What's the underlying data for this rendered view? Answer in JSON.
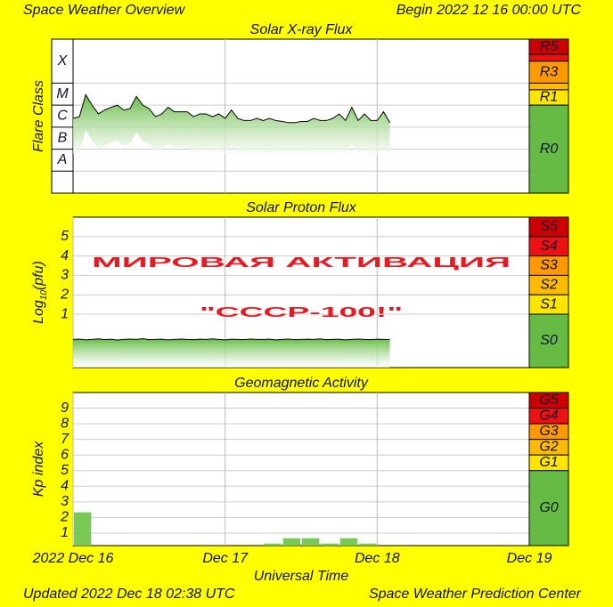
{
  "header": {
    "title": "Space Weather Overview",
    "begin": "Begin 2022 12 16 00:00 UTC"
  },
  "footer": {
    "updated": "Updated 2022 Dec 18 02:38 UTC",
    "source": "Space Weather Prediction Center"
  },
  "overlay": {
    "line1": "МИРОВАЯ АКТИВАЦИЯ",
    "line2": "\"СССР-100!\""
  },
  "time_axis": {
    "xlim": [
      0,
      72
    ],
    "xticks": [
      {
        "value": 0,
        "label": "2022 Dec 16"
      },
      {
        "value": 24,
        "label": "Dec 17"
      },
      {
        "value": 48,
        "label": "Dec 18"
      },
      {
        "value": 72,
        "label": "Dec 19"
      }
    ],
    "xlabel": "Universal Time"
  },
  "chart_data": [
    {
      "type": "line",
      "title": "Solar X-ray Flux",
      "ylabel": "Flare Class",
      "log_scale": true,
      "ylim": [
        1e-09,
        0.01
      ],
      "yticks": [
        {
          "value": 3.16e-08,
          "label": "A"
        },
        {
          "value": 3.16e-07,
          "label": "B"
        },
        {
          "value": 3.16e-06,
          "label": "C"
        },
        {
          "value": 3.16e-05,
          "label": "M"
        },
        {
          "value": 0.001,
          "label": "X"
        }
      ],
      "ygrid": [
        1e-08,
        1e-07,
        1e-06,
        1e-05,
        0.0001
      ],
      "color": "#000000",
      "fill_color": "#66bb44",
      "x": [
        0,
        1,
        2,
        3,
        4,
        5,
        6,
        7,
        8,
        9,
        10,
        11,
        12,
        13,
        14,
        15,
        16,
        17,
        18,
        19,
        20,
        21,
        22,
        23,
        24,
        25,
        26,
        27,
        28,
        29,
        30,
        31,
        32,
        33,
        34,
        35,
        36,
        37,
        38,
        39,
        40,
        41,
        42,
        43,
        44,
        45,
        46,
        47,
        48,
        49,
        50
      ],
      "values": [
        2.5e-06,
        3e-06,
        3e-05,
        1e-05,
        4e-06,
        6e-06,
        8e-06,
        1e-05,
        6e-06,
        7e-06,
        2.5e-05,
        1e-05,
        7e-06,
        3e-06,
        4e-06,
        8e-06,
        5e-06,
        5e-06,
        5e-06,
        3e-06,
        4e-06,
        4e-06,
        3e-06,
        4e-06,
        2.5e-06,
        6e-06,
        2.5e-06,
        2e-06,
        2e-06,
        2.5e-06,
        2e-06,
        2.5e-06,
        2e-06,
        1.8e-06,
        1.6e-06,
        1.6e-06,
        1.8e-06,
        1.8e-06,
        2.5e-06,
        2e-06,
        2e-06,
        2.5e-06,
        4e-06,
        2e-06,
        8e-06,
        2e-06,
        4e-06,
        2e-06,
        2e-06,
        5e-06,
        1.6e-06
      ],
      "scale": [
        {
          "label": "R5",
          "from": 0.002,
          "to": 0.01,
          "color": "#cc0000"
        },
        {
          "from": 0.001,
          "to": 0.002,
          "color": "#e81010"
        },
        {
          "label": "R3",
          "from": 0.0001,
          "to": 0.001,
          "color": "#ff9900"
        },
        {
          "from": 5e-05,
          "to": 0.0001,
          "color": "#ffbb00"
        },
        {
          "label": "R1",
          "from": 1e-05,
          "to": 5e-05,
          "color": "#ffe600"
        },
        {
          "label": "R0",
          "from": 1e-09,
          "to": 1e-05,
          "color": "#66bb44"
        }
      ]
    },
    {
      "type": "line",
      "title": "Solar Proton Flux",
      "ylabel": [
        "Log",
        "10",
        "(pfu)"
      ],
      "ylim": [
        -1.75,
        6
      ],
      "yticks": [
        1,
        2,
        3,
        4,
        5
      ],
      "grid": true,
      "color": "#000000",
      "fill_color": "#66bb44",
      "x": [
        0,
        1,
        2,
        3,
        4,
        5,
        6,
        7,
        8,
        9,
        10,
        11,
        12,
        13,
        14,
        15,
        16,
        17,
        18,
        19,
        20,
        21,
        22,
        23,
        24,
        25,
        26,
        27,
        28,
        29,
        30,
        31,
        32,
        33,
        34,
        35,
        36,
        37,
        38,
        39,
        40,
        41,
        42,
        43,
        44,
        45,
        46,
        47,
        48,
        49,
        50
      ],
      "values": [
        -0.3,
        -0.28,
        -0.32,
        -0.3,
        -0.27,
        -0.31,
        -0.29,
        -0.33,
        -0.3,
        -0.28,
        -0.3,
        -0.26,
        -0.31,
        -0.3,
        -0.29,
        -0.32,
        -0.3,
        -0.28,
        -0.3,
        -0.31,
        -0.29,
        -0.3,
        -0.27,
        -0.3,
        -0.32,
        -0.29,
        -0.3,
        -0.31,
        -0.28,
        -0.3,
        -0.3,
        -0.29,
        -0.32,
        -0.3,
        -0.28,
        -0.31,
        -0.3,
        -0.29,
        -0.3,
        -0.27,
        -0.31,
        -0.3,
        -0.29,
        -0.32,
        -0.3,
        -0.28,
        -0.3,
        -0.31,
        -0.29,
        -0.3,
        -0.3
      ],
      "scale": [
        {
          "label": "S5",
          "from": 5,
          "to": 6,
          "color": "#cc0000"
        },
        {
          "label": "S4",
          "from": 4,
          "to": 5,
          "color": "#ee1111"
        },
        {
          "label": "S3",
          "from": 3,
          "to": 4,
          "color": "#ff9900"
        },
        {
          "label": "S2",
          "from": 2,
          "to": 3,
          "color": "#ffbb00"
        },
        {
          "label": "S1",
          "from": 1,
          "to": 2,
          "color": "#ffe600"
        },
        {
          "label": "S0",
          "from": -1.75,
          "to": 1,
          "color": "#66bb44"
        }
      ]
    },
    {
      "type": "bar",
      "title": "Geomagnetic Activity",
      "ylabel": "Kp index",
      "ylim": [
        0.2,
        10
      ],
      "yticks": [
        1,
        2,
        3,
        4,
        5,
        6,
        7,
        8,
        9
      ],
      "grid": true,
      "color": "#77c855",
      "x": [
        0,
        3,
        6,
        9,
        12,
        15,
        18,
        21,
        24,
        27,
        30,
        33,
        36,
        39,
        42,
        45
      ],
      "values": [
        2.33,
        0,
        0,
        0,
        0,
        0,
        0,
        0,
        0,
        0,
        0.33,
        0.67,
        0.67,
        0.33,
        0.67,
        0.33
      ],
      "scale": [
        {
          "label": "G5",
          "from": 9,
          "to": 10,
          "color": "#cc0000"
        },
        {
          "label": "G4",
          "from": 8,
          "to": 9,
          "color": "#ee1111"
        },
        {
          "label": "G3",
          "from": 7,
          "to": 8,
          "color": "#ff9900"
        },
        {
          "label": "G2",
          "from": 6,
          "to": 7,
          "color": "#ffbb00"
        },
        {
          "label": "G1",
          "from": 5,
          "to": 6,
          "color": "#ffe600"
        },
        {
          "label": "G0",
          "from": 0.2,
          "to": 5,
          "color": "#66bb44"
        }
      ]
    }
  ]
}
